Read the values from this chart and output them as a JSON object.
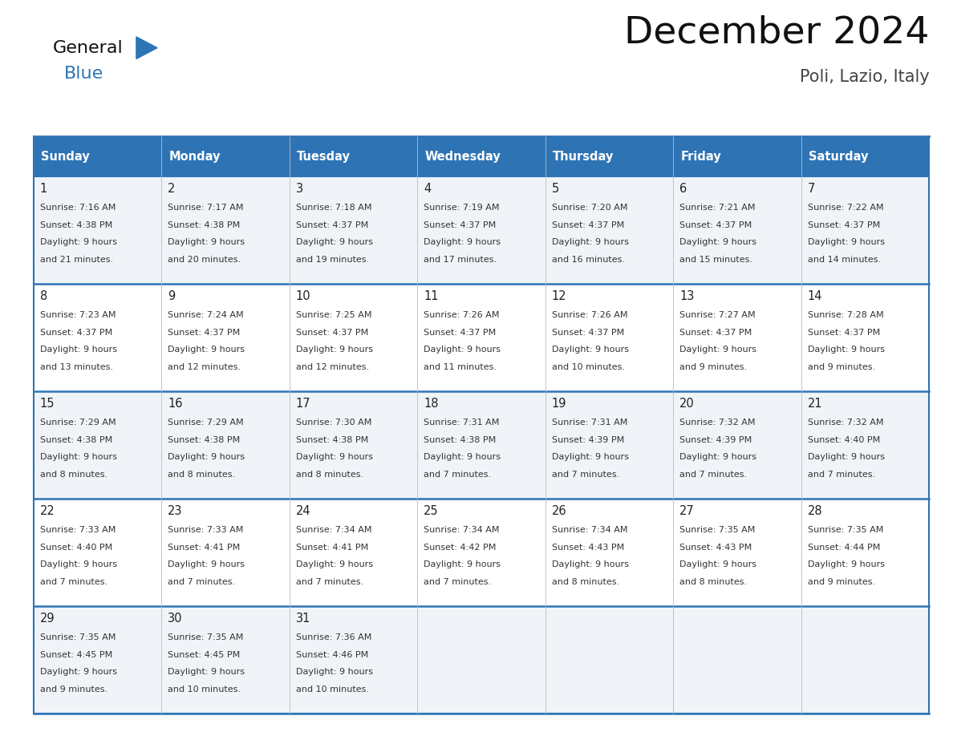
{
  "title": "December 2024",
  "subtitle": "Poli, Lazio, Italy",
  "days_of_week": [
    "Sunday",
    "Monday",
    "Tuesday",
    "Wednesday",
    "Thursday",
    "Friday",
    "Saturday"
  ],
  "header_bg": "#2E74B5",
  "header_text_color": "#FFFFFF",
  "cell_bg_light": "#F0F4F8",
  "cell_bg_white": "#FFFFFF",
  "border_color_dark": "#2E74B5",
  "border_color_light": "#A0B4C8",
  "day_number_color": "#222222",
  "text_color": "#333333",
  "title_color": "#111111",
  "subtitle_color": "#444444",
  "logo_text_color": "#111111",
  "logo_blue_color": "#2E74B5",
  "calendar_data": [
    [
      {
        "day": 1,
        "sunrise": "7:16 AM",
        "sunset": "4:38 PM",
        "daylight_hours": 9,
        "daylight_minutes": 21
      },
      {
        "day": 2,
        "sunrise": "7:17 AM",
        "sunset": "4:38 PM",
        "daylight_hours": 9,
        "daylight_minutes": 20
      },
      {
        "day": 3,
        "sunrise": "7:18 AM",
        "sunset": "4:37 PM",
        "daylight_hours": 9,
        "daylight_minutes": 19
      },
      {
        "day": 4,
        "sunrise": "7:19 AM",
        "sunset": "4:37 PM",
        "daylight_hours": 9,
        "daylight_minutes": 17
      },
      {
        "day": 5,
        "sunrise": "7:20 AM",
        "sunset": "4:37 PM",
        "daylight_hours": 9,
        "daylight_minutes": 16
      },
      {
        "day": 6,
        "sunrise": "7:21 AM",
        "sunset": "4:37 PM",
        "daylight_hours": 9,
        "daylight_minutes": 15
      },
      {
        "day": 7,
        "sunrise": "7:22 AM",
        "sunset": "4:37 PM",
        "daylight_hours": 9,
        "daylight_minutes": 14
      }
    ],
    [
      {
        "day": 8,
        "sunrise": "7:23 AM",
        "sunset": "4:37 PM",
        "daylight_hours": 9,
        "daylight_minutes": 13
      },
      {
        "day": 9,
        "sunrise": "7:24 AM",
        "sunset": "4:37 PM",
        "daylight_hours": 9,
        "daylight_minutes": 12
      },
      {
        "day": 10,
        "sunrise": "7:25 AM",
        "sunset": "4:37 PM",
        "daylight_hours": 9,
        "daylight_minutes": 12
      },
      {
        "day": 11,
        "sunrise": "7:26 AM",
        "sunset": "4:37 PM",
        "daylight_hours": 9,
        "daylight_minutes": 11
      },
      {
        "day": 12,
        "sunrise": "7:26 AM",
        "sunset": "4:37 PM",
        "daylight_hours": 9,
        "daylight_minutes": 10
      },
      {
        "day": 13,
        "sunrise": "7:27 AM",
        "sunset": "4:37 PM",
        "daylight_hours": 9,
        "daylight_minutes": 9
      },
      {
        "day": 14,
        "sunrise": "7:28 AM",
        "sunset": "4:37 PM",
        "daylight_hours": 9,
        "daylight_minutes": 9
      }
    ],
    [
      {
        "day": 15,
        "sunrise": "7:29 AM",
        "sunset": "4:38 PM",
        "daylight_hours": 9,
        "daylight_minutes": 8
      },
      {
        "day": 16,
        "sunrise": "7:29 AM",
        "sunset": "4:38 PM",
        "daylight_hours": 9,
        "daylight_minutes": 8
      },
      {
        "day": 17,
        "sunrise": "7:30 AM",
        "sunset": "4:38 PM",
        "daylight_hours": 9,
        "daylight_minutes": 8
      },
      {
        "day": 18,
        "sunrise": "7:31 AM",
        "sunset": "4:38 PM",
        "daylight_hours": 9,
        "daylight_minutes": 7
      },
      {
        "day": 19,
        "sunrise": "7:31 AM",
        "sunset": "4:39 PM",
        "daylight_hours": 9,
        "daylight_minutes": 7
      },
      {
        "day": 20,
        "sunrise": "7:32 AM",
        "sunset": "4:39 PM",
        "daylight_hours": 9,
        "daylight_minutes": 7
      },
      {
        "day": 21,
        "sunrise": "7:32 AM",
        "sunset": "4:40 PM",
        "daylight_hours": 9,
        "daylight_minutes": 7
      }
    ],
    [
      {
        "day": 22,
        "sunrise": "7:33 AM",
        "sunset": "4:40 PM",
        "daylight_hours": 9,
        "daylight_minutes": 7
      },
      {
        "day": 23,
        "sunrise": "7:33 AM",
        "sunset": "4:41 PM",
        "daylight_hours": 9,
        "daylight_minutes": 7
      },
      {
        "day": 24,
        "sunrise": "7:34 AM",
        "sunset": "4:41 PM",
        "daylight_hours": 9,
        "daylight_minutes": 7
      },
      {
        "day": 25,
        "sunrise": "7:34 AM",
        "sunset": "4:42 PM",
        "daylight_hours": 9,
        "daylight_minutes": 7
      },
      {
        "day": 26,
        "sunrise": "7:34 AM",
        "sunset": "4:43 PM",
        "daylight_hours": 9,
        "daylight_minutes": 8
      },
      {
        "day": 27,
        "sunrise": "7:35 AM",
        "sunset": "4:43 PM",
        "daylight_hours": 9,
        "daylight_minutes": 8
      },
      {
        "day": 28,
        "sunrise": "7:35 AM",
        "sunset": "4:44 PM",
        "daylight_hours": 9,
        "daylight_minutes": 9
      }
    ],
    [
      {
        "day": 29,
        "sunrise": "7:35 AM",
        "sunset": "4:45 PM",
        "daylight_hours": 9,
        "daylight_minutes": 9
      },
      {
        "day": 30,
        "sunrise": "7:35 AM",
        "sunset": "4:45 PM",
        "daylight_hours": 9,
        "daylight_minutes": 10
      },
      {
        "day": 31,
        "sunrise": "7:36 AM",
        "sunset": "4:46 PM",
        "daylight_hours": 9,
        "daylight_minutes": 10
      },
      null,
      null,
      null,
      null
    ]
  ],
  "n_rows": 5,
  "n_cols": 7,
  "fig_width": 11.88,
  "fig_height": 9.18
}
